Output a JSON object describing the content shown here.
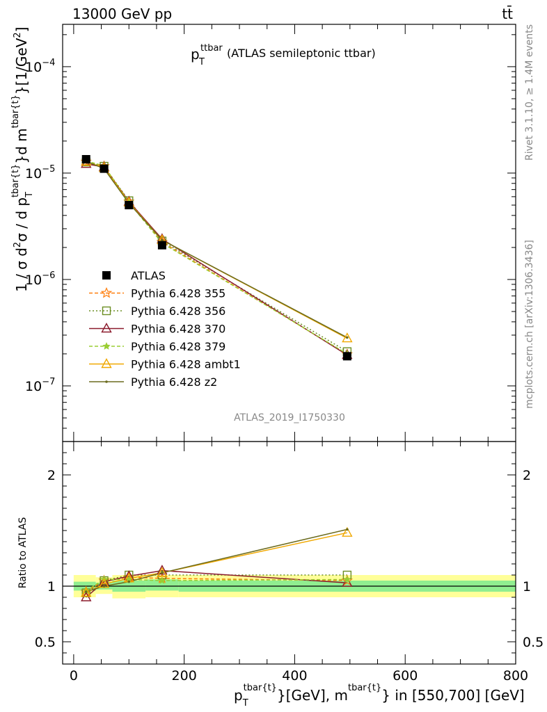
{
  "header": {
    "left": "13000 GeV pp",
    "right": "tt̄"
  },
  "side": {
    "rivet": "Rivet 3.1.10, ≥ 1.4M events",
    "mcplots": "mcplots.cern.ch [arXiv:1306.3436]"
  },
  "watermark": "ATLAS_2019_I1750330",
  "colors": {
    "data": "#000000",
    "p355": "#ff7f0e",
    "p356": "#6b8e23",
    "p370": "#8b1a2c",
    "p379": "#9acd32",
    "ambt1": "#f0a800",
    "z2": "#6b6b1e",
    "band_inner": "#90ee90",
    "band_outer": "#ffff99"
  },
  "chart_data": [
    {
      "type": "line",
      "panel": "main",
      "title_main": "p",
      "title_sub": "T",
      "title_sup": "ttbar",
      "title_rest": "(ATLAS semileptonic ttbar)",
      "ylabel": "1 / σ d²σ / d p_T^{tbar{t}}d m^{tbar{t}}[1/GeV²]",
      "ylabel_parts": {
        "a": "1 / σ d",
        "b": "2",
        "c": "σ /  d p",
        "d": "T",
        "e": "tbar{t}",
        "f": "}d m",
        "g": "tbar{t}",
        "h": "}[1/GeV",
        "i": "2",
        "j": "]"
      },
      "yscale": "log",
      "ylim": [
        3e-08,
        0.00025
      ],
      "xlim": [
        -20,
        800
      ],
      "y_ticks": [
        {
          "value": 1e-07,
          "base": "10",
          "exp": "−7"
        },
        {
          "value": 1e-06,
          "base": "10",
          "exp": "−6"
        },
        {
          "value": 1e-05,
          "base": "10",
          "exp": "−5"
        },
        {
          "value": 0.0001,
          "base": "10",
          "exp": "−4"
        }
      ],
      "legend_position": "middle-left",
      "data": {
        "name": "ATLAS",
        "x": [
          22.5,
          55,
          100,
          160,
          495
        ],
        "y": [
          1.35e-05,
          1.1e-05,
          5e-06,
          2.1e-06,
          1.9e-07
        ]
      },
      "series": [
        {
          "key": "p355",
          "name": "Pythia 6.428 355",
          "marker": "star-open",
          "dash": "5,3",
          "y": [
            1.28e-05,
            1.16e-05,
            5.4e-06,
            2.25e-06,
            1.98e-07
          ]
        },
        {
          "key": "p356",
          "name": "Pythia 6.428 356",
          "marker": "square-open",
          "dash": "2,3",
          "y": [
            1.27e-05,
            1.16e-05,
            5.5e-06,
            2.3e-06,
            2.1e-07
          ]
        },
        {
          "key": "p370",
          "name": "Pythia 6.428 370",
          "marker": "triangle-open",
          "dash": "",
          "y": [
            1.22e-05,
            1.14e-05,
            5.4e-06,
            2.4e-06,
            1.95e-07
          ]
        },
        {
          "key": "p379",
          "name": "Pythia 6.428 379",
          "marker": "star-filled",
          "dash": "5,3",
          "y": [
            1.3e-05,
            1.17e-05,
            5.3e-06,
            2.2e-06,
            2e-07
          ]
        },
        {
          "key": "ambt1",
          "name": "Pythia 6.428 ambt1",
          "marker": "triangle-open",
          "dash": "",
          "y": [
            1.28e-05,
            1.12e-05,
            5.3e-06,
            2.35e-06,
            2.8e-07
          ]
        },
        {
          "key": "z2",
          "name": "Pythia 6.428 z2",
          "marker": "dot",
          "dash": "",
          "y": [
            1.29e-05,
            1.1e-05,
            5.2e-06,
            2.35e-06,
            2.85e-07
          ]
        }
      ]
    },
    {
      "type": "line",
      "panel": "ratio",
      "ylabel": "Ratio to ATLAS",
      "ylim": [
        0.3,
        2.3
      ],
      "xlim": [
        -20,
        800
      ],
      "xlabel_parts": {
        "a": "p",
        "b": "T",
        "c": "tbar{t}",
        "d": "}[GeV], m",
        "e": "tbar{t}",
        "f": "} in [550,700] [GeV]"
      },
      "x_ticks": [
        0,
        200,
        400,
        600,
        800
      ],
      "y_ticks": [
        {
          "value": 0.5,
          "label": "0.5"
        },
        {
          "value": 1,
          "label": "1"
        },
        {
          "value": 2,
          "label": "2"
        }
      ],
      "bins": [
        {
          "lo": 0,
          "hi": 40,
          "inner": [
            0.96,
            1.04
          ],
          "outer": [
            0.9,
            1.1
          ]
        },
        {
          "lo": 40,
          "hi": 70,
          "inner": [
            0.97,
            1.03
          ],
          "outer": [
            0.93,
            1.08
          ]
        },
        {
          "lo": 70,
          "hi": 130,
          "inner": [
            0.95,
            1.05
          ],
          "outer": [
            0.89,
            1.1
          ]
        },
        {
          "lo": 130,
          "hi": 190,
          "inner": [
            0.96,
            1.06
          ],
          "outer": [
            0.9,
            1.1
          ]
        },
        {
          "lo": 190,
          "hi": 800,
          "inner": [
            0.95,
            1.05
          ],
          "outer": [
            0.9,
            1.1
          ]
        }
      ],
      "x": [
        22.5,
        55,
        100,
        160,
        495
      ],
      "series": [
        {
          "key": "p355",
          "y": [
            0.95,
            1.05,
            1.08,
            1.07,
            1.05
          ]
        },
        {
          "key": "p356",
          "y": [
            0.94,
            1.05,
            1.1,
            1.1,
            1.1
          ]
        },
        {
          "key": "p370",
          "y": [
            0.9,
            1.04,
            1.09,
            1.14,
            1.03
          ]
        },
        {
          "key": "p379",
          "y": [
            0.96,
            1.06,
            1.06,
            1.05,
            1.06
          ]
        },
        {
          "key": "ambt1",
          "y": [
            0.94,
            1.02,
            1.07,
            1.12,
            1.48
          ]
        },
        {
          "key": "z2",
          "y": [
            0.95,
            1.0,
            1.04,
            1.12,
            1.51
          ]
        }
      ]
    }
  ]
}
